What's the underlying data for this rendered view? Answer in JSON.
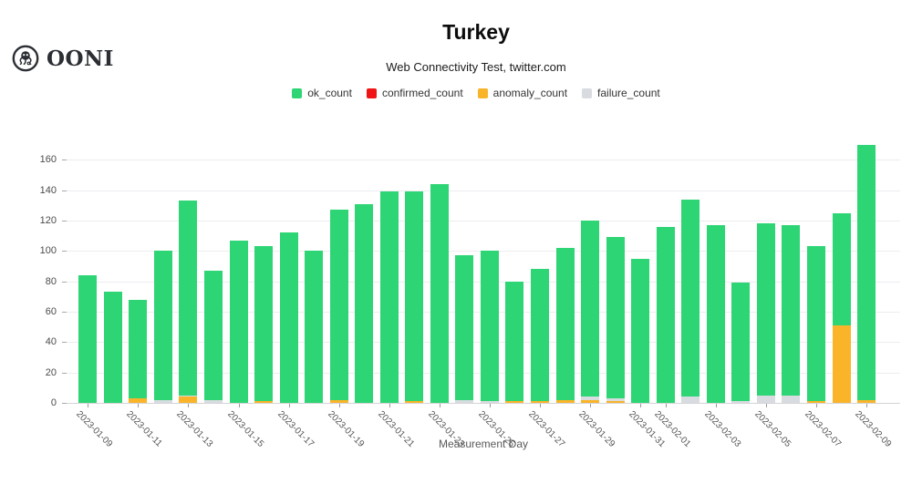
{
  "header": {
    "logo_text": "OONI",
    "title": "Turkey",
    "subtitle": "Web Connectivity Test, twitter.com"
  },
  "chart_data": {
    "type": "bar",
    "stacked": true,
    "title": "Turkey",
    "subtitle": "Web Connectivity Test, twitter.com",
    "xlabel": "Measurement Day",
    "ylabel": "",
    "ylim": [
      0,
      160
    ],
    "y_ticks": [
      0,
      20,
      40,
      60,
      80,
      100,
      120,
      140,
      160
    ],
    "grid": true,
    "legend_position": "top",
    "categories": [
      "2023-01-09",
      "2023-01-10",
      "2023-01-11",
      "2023-01-12",
      "2023-01-13",
      "2023-01-14",
      "2023-01-15",
      "2023-01-16",
      "2023-01-17",
      "2023-01-18",
      "2023-01-19",
      "2023-01-20",
      "2023-01-21",
      "2023-01-22",
      "2023-01-23",
      "2023-01-24",
      "2023-01-25",
      "2023-01-26",
      "2023-01-27",
      "2023-01-28",
      "2023-01-29",
      "2023-01-30",
      "2023-01-31",
      "2023-02-01",
      "2023-02-02",
      "2023-02-03",
      "2023-02-04",
      "2023-02-05",
      "2023-02-06",
      "2023-02-07",
      "2023-02-08",
      "2023-02-09"
    ],
    "x_tick_labels": [
      "2023-01-09",
      "2023-01-11",
      "2023-01-13",
      "2023-01-15",
      "2023-01-17",
      "2023-01-19",
      "2023-01-21",
      "2023-01-23",
      "2023-01-25",
      "2023-01-27",
      "2023-01-29",
      "2023-01-31",
      "2023-02-01",
      "2023-02-03",
      "2023-02-05",
      "2023-02-07",
      "2023-02-09"
    ],
    "series": [
      {
        "name": "ok_count",
        "color": "#2ed574",
        "values": [
          84,
          73,
          65,
          98,
          128,
          85,
          107,
          102,
          112,
          100,
          125,
          131,
          139,
          138,
          144,
          95,
          99,
          79,
          87,
          100,
          116,
          106,
          95,
          116,
          130,
          117,
          78,
          113,
          112,
          102,
          74,
          168
        ]
      },
      {
        "name": "confirmed_count",
        "color": "#f01414",
        "values": [
          0,
          0,
          0,
          0,
          0,
          0,
          0,
          0,
          0,
          0,
          0,
          0,
          0,
          0,
          0,
          0,
          0,
          0,
          0,
          0,
          0,
          0,
          0,
          0,
          0,
          0,
          0,
          0,
          0,
          0,
          0,
          0
        ]
      },
      {
        "name": "anomaly_count",
        "color": "#f9b42a",
        "values": [
          0,
          0,
          3,
          0,
          4,
          0,
          0,
          1,
          0,
          0,
          2,
          0,
          0,
          1,
          0,
          0,
          0,
          1,
          1,
          2,
          2,
          1,
          0,
          0,
          0,
          0,
          0,
          0,
          0,
          1,
          51,
          2
        ]
      },
      {
        "name": "failure_count",
        "color": "#d8dbe0",
        "values": [
          0,
          0,
          0,
          2,
          1,
          2,
          0,
          0,
          0,
          0,
          0,
          0,
          0,
          0,
          0,
          2,
          1,
          0,
          0,
          0,
          2,
          2,
          0,
          0,
          4,
          0,
          1,
          5,
          5,
          0,
          0,
          0
        ]
      }
    ]
  }
}
